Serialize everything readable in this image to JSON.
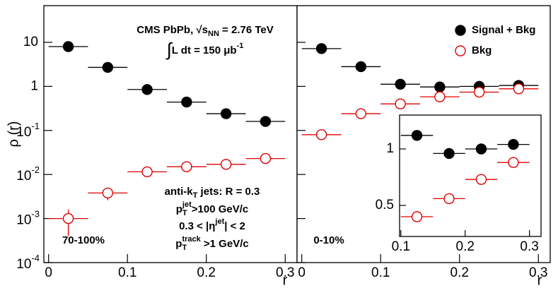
{
  "chart_data": [
    {
      "type": "scatter",
      "log_y": true,
      "y_label": "ρ (r)",
      "x_label": "r",
      "xlim": [
        -0.006,
        0.315
      ],
      "xticks": [
        0,
        0.1,
        0.2,
        0.3
      ],
      "ylim": [
        0.0001,
        68
      ],
      "yticks": [
        {
          "value": 0.0001,
          "label": "10",
          "exponent": "-4"
        },
        {
          "value": 0.001,
          "label": "10",
          "exponent": "-3"
        },
        {
          "value": 0.01,
          "label": "10",
          "exponent": "-2"
        },
        {
          "value": 0.1,
          "label": "10",
          "exponent": "-1"
        },
        1,
        10
      ],
      "x": [
        0.025,
        0.075,
        0.125,
        0.175,
        0.225,
        0.275
      ],
      "xerr": 0.025,
      "series": [
        {
          "name": "Signal + Bkg",
          "color": "#000000",
          "filled": true,
          "values": [
            8,
            2.7,
            0.85,
            0.44,
            0.24,
            0.16
          ]
        },
        {
          "name": "Bkg",
          "color": "#e00000",
          "filled": false,
          "values": [
            0.001,
            0.0038,
            0.0115,
            0.015,
            0.017,
            0.023
          ],
          "yerr": [
            0.0006,
            0.0012,
            null,
            null,
            null,
            null
          ]
        }
      ],
      "annotations": [
        [
          [
            "CMS PbPb, √",
            "n"
          ],
          [
            "s",
            "n"
          ],
          [
            "NN",
            "sub"
          ],
          [
            " = 2.76 TeV",
            "n"
          ]
        ],
        [
          [
            "∫",
            "big"
          ],
          [
            "L dt = 150 μb",
            "n"
          ],
          [
            "-1",
            "sup"
          ]
        ],
        [
          [
            "anti-k",
            "n"
          ],
          [
            "T",
            "sub"
          ],
          [
            " jets: R = 0.3",
            "n"
          ]
        ],
        [
          [
            "p",
            "n"
          ],
          [
            "T",
            "sub"
          ],
          [
            "jet",
            "supover"
          ],
          [
            ">100 GeV/c",
            "n"
          ]
        ],
        [
          [
            "0.3 < |η",
            "n"
          ],
          [
            "jet",
            "sup"
          ],
          [
            "| < 2",
            "n"
          ]
        ],
        [
          [
            "p",
            "n"
          ],
          [
            "T",
            "sub"
          ],
          [
            "track",
            "supover"
          ],
          [
            " >1 GeV/c",
            "n"
          ]
        ],
        [
          [
            "70-100%",
            "n"
          ]
        ]
      ]
    },
    {
      "type": "scatter",
      "log_y": true,
      "x_label": "r",
      "xlim": [
        -0.006,
        0.315
      ],
      "xticks": [
        0,
        0.1,
        0.2,
        0.3
      ],
      "ylim": [
        0.0001,
        68
      ],
      "x": [
        0.025,
        0.075,
        0.125,
        0.175,
        0.225,
        0.275
      ],
      "xerr": 0.025,
      "legend": "top-right",
      "series": [
        {
          "name": "Signal + Bkg",
          "color": "#000000",
          "filled": true,
          "values": [
            7.2,
            2.8,
            1.12,
            0.97,
            1.0,
            1.05
          ]
        },
        {
          "name": "Bkg",
          "color": "#e00000",
          "filled": false,
          "values": [
            0.08,
            0.24,
            0.4,
            0.58,
            0.74,
            0.88
          ]
        }
      ],
      "annotations": [
        [
          [
            "0-10%",
            "n"
          ]
        ]
      ]
    },
    {
      "type": "scatter",
      "log_y": false,
      "xlim": [
        0.098,
        0.318
      ],
      "xticks": [
        0.1,
        0.2,
        0.3
      ],
      "ylim": [
        0.225,
        1.3
      ],
      "yticks": [
        0.5,
        1
      ],
      "x": [
        0.125,
        0.175,
        0.225,
        0.275
      ],
      "xerr": 0.025,
      "series": [
        {
          "name": "Signal + Bkg",
          "color": "#000000",
          "filled": true,
          "values": [
            1.12,
            0.96,
            1.0,
            1.04
          ]
        },
        {
          "name": "Bkg",
          "color": "#e00000",
          "filled": false,
          "values": [
            0.4,
            0.56,
            0.73,
            0.88
          ]
        }
      ]
    }
  ]
}
